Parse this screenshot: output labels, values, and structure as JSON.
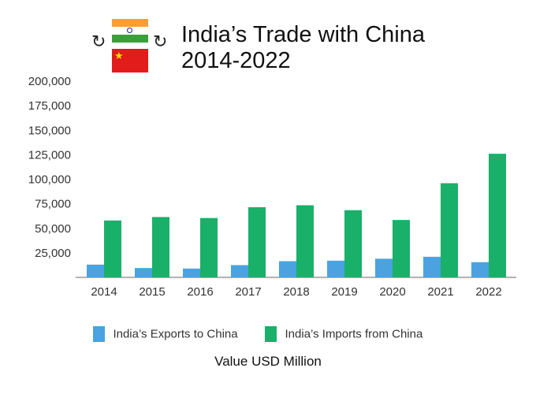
{
  "header": {
    "title_line1": "India’s Trade with China",
    "title_line2": "2014-2022"
  },
  "colors": {
    "exports": "#4aa3df",
    "imports": "#19b06a",
    "axis": "#999999"
  },
  "chart_data": {
    "type": "bar",
    "title": "India’s Trade with China 2014-2022",
    "xlabel": "Value USD Million",
    "ylabel": "",
    "categories": [
      "2014",
      "2015",
      "2016",
      "2017",
      "2018",
      "2019",
      "2020",
      "2021",
      "2022"
    ],
    "series": [
      {
        "name": "India’s Exports to China",
        "values": [
          13000,
          9500,
          9000,
          12500,
          16500,
          17000,
          19000,
          21000,
          15500
        ]
      },
      {
        "name": "India’s Imports from China",
        "values": [
          58000,
          61500,
          60500,
          71500,
          73500,
          68500,
          58500,
          96000,
          126000
        ]
      }
    ],
    "ylim": [
      0,
      200000
    ],
    "yticks": [
      25000,
      50000,
      75000,
      100000,
      125000,
      150000,
      175000,
      200000
    ],
    "ytick_labels": [
      "25,000",
      "50,000",
      "75,000",
      "100,000",
      "125,000",
      "150,000",
      "175,000",
      "200,000"
    ],
    "legend_position": "bottom",
    "grid": false
  },
  "legend": {
    "exports_label": "India’s Exports to China",
    "imports_label": "India’s Imports from China"
  },
  "icons": [
    "india-flag-icon",
    "china-flag-icon",
    "cycle-arrow-icon"
  ]
}
